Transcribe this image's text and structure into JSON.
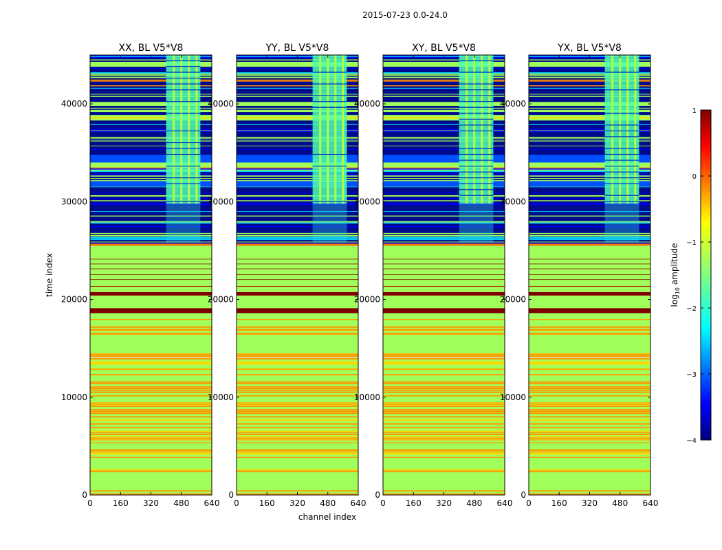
{
  "chart_data": {
    "type": "heatmap",
    "suptitle": "2015-07-23 0.0-24.0",
    "xlabel": "channel index",
    "ylabel": "time index",
    "xlim": [
      0,
      640
    ],
    "ylim": [
      0,
      45000
    ],
    "xticks": [
      "0",
      "160",
      "320",
      "480",
      "640"
    ],
    "yticks": [
      "0",
      "10000",
      "20000",
      "30000",
      "40000"
    ],
    "panels": [
      {
        "title": "XX, BL V5*V8",
        "shows_yticks": true
      },
      {
        "title": "YY, BL V5*V8",
        "shows_yticks": true
      },
      {
        "title": "XY, BL V5*V8",
        "shows_yticks": true
      },
      {
        "title": "YX, BL V5*V8",
        "shows_yticks": true
      }
    ],
    "colorbar": {
      "label": "log₁₀ amplitude",
      "label_base": "log",
      "label_sub": "10",
      "label_rest": " amplitude",
      "vmin": -4,
      "vmax": 1,
      "ticks": [
        "1",
        "0",
        "−1",
        "−2",
        "−3",
        "−4"
      ],
      "colormap": "jet"
    },
    "regions": [
      {
        "t0": 0,
        "t1": 14500,
        "description": "alternating green / orange horizontal stripes, log amplitude ~ -1.2 to 0"
      },
      {
        "t0": 14500,
        "t1": 17500,
        "description": "mostly green with thin orange stripes"
      },
      {
        "t0": 17500,
        "t1": 25500,
        "description": "green (~ -1.2) with dark red bands (~ 1) near 18700 and 20500"
      },
      {
        "t0": 25500,
        "t1": 45000,
        "description": "dark blue (~ -3.5) low amplitude with green stripes; cyan/green block across channels ~400-580 above 26000"
      }
    ],
    "red_bands": [
      18600,
      19100,
      20400,
      20700
    ],
    "block_channels": [
      400,
      580
    ]
  }
}
